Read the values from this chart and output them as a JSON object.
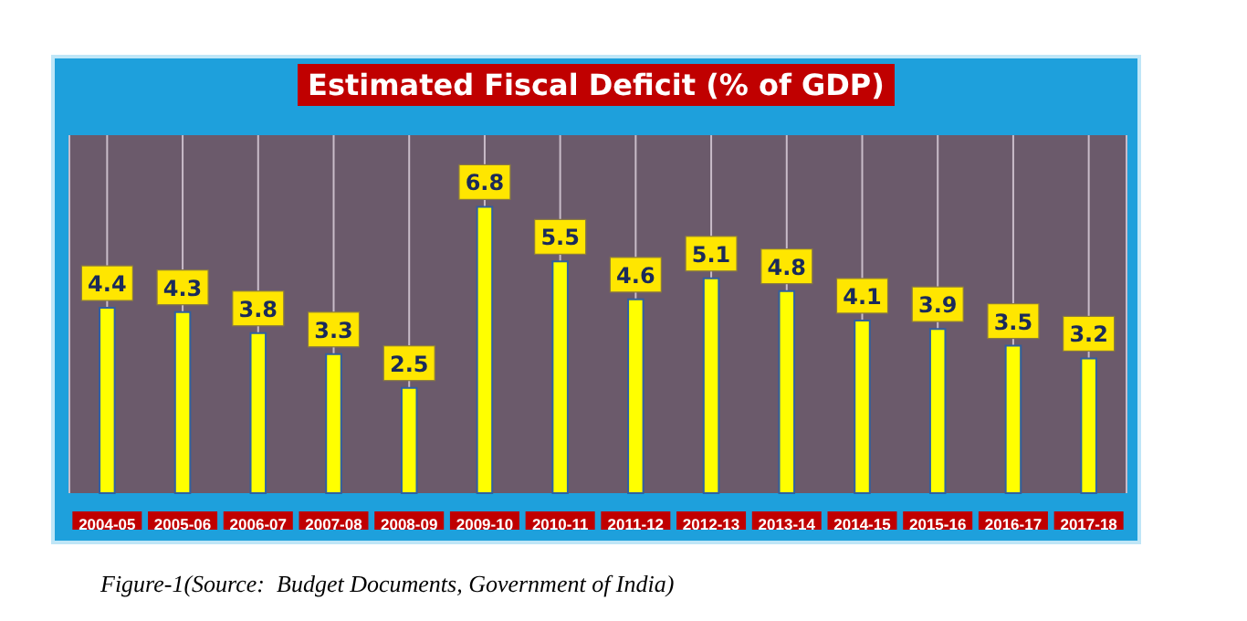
{
  "chart_data": {
    "type": "bar",
    "title": "Estimated Fiscal Deficit (% of GDP)",
    "categories": [
      "2004-05",
      "2005-06",
      "2006-07",
      "2007-08",
      "2008-09",
      "2009-10",
      "2010-11",
      "2011-12",
      "2012-13",
      "2013-14",
      "2014-15",
      "2015-16",
      "2016-17",
      "2017-18"
    ],
    "values": [
      4.4,
      4.3,
      3.8,
      3.3,
      2.5,
      6.8,
      5.5,
      4.6,
      5.1,
      4.8,
      4.1,
      3.9,
      3.5,
      3.2
    ],
    "color": "#ffff00",
    "data_labels": true,
    "grid": "x",
    "annotations": [
      "Figure-1(Source:  Budget Documents, Government of India)"
    ]
  }
}
